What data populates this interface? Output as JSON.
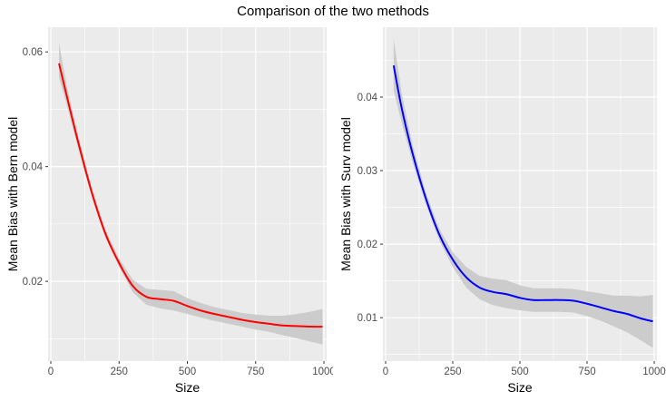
{
  "figure": {
    "title": "Comparison of the two methods"
  },
  "chart_data": [
    {
      "type": "line",
      "title": "",
      "xlabel": "Size",
      "ylabel": "Mean Bias with Bern model",
      "xlim": [
        -10,
        1010
      ],
      "ylim": [
        0.0061,
        0.0643
      ],
      "xticks": [
        0,
        250,
        500,
        750,
        1000
      ],
      "xtick_labels": [
        "0",
        "250",
        "500",
        "750",
        "1000"
      ],
      "yticks": [
        0.02,
        0.04,
        0.06
      ],
      "ytick_labels": [
        "0.02",
        "0.04",
        "0.06"
      ],
      "grid": true,
      "background": "#ebebeb",
      "line_color": "#ff0000",
      "ribbon_color": "#cccccc",
      "series": [
        {
          "x": [
            30,
            60,
            100,
            150,
            200,
            250,
            300,
            350,
            400,
            450,
            500,
            550,
            600,
            650,
            700,
            750,
            800,
            850,
            900,
            950,
            995
          ],
          "y": [
            0.058,
            0.052,
            0.0443,
            0.0355,
            0.0283,
            0.0232,
            0.0192,
            0.0173,
            0.0169,
            0.0166,
            0.0157,
            0.0149,
            0.0143,
            0.0138,
            0.0133,
            0.0129,
            0.0126,
            0.0123,
            0.0122,
            0.0121,
            0.0121
          ],
          "lower": [
            0.0555,
            0.0505,
            0.0432,
            0.0347,
            0.0276,
            0.0225,
            0.0181,
            0.0159,
            0.0153,
            0.0149,
            0.0143,
            0.0137,
            0.0131,
            0.0126,
            0.0121,
            0.0116,
            0.0112,
            0.0106,
            0.0101,
            0.0095,
            0.009
          ],
          "upper": [
            0.0615,
            0.0538,
            0.0455,
            0.0363,
            0.029,
            0.024,
            0.0203,
            0.0187,
            0.0185,
            0.0183,
            0.0171,
            0.0162,
            0.0155,
            0.015,
            0.0145,
            0.0142,
            0.014,
            0.014,
            0.0143,
            0.0147,
            0.0152
          ]
        }
      ]
    },
    {
      "type": "line",
      "title": "",
      "xlabel": "Size",
      "ylabel": "Mean Bias with Surv model",
      "xlim": [
        -10,
        1010
      ],
      "ylim": [
        0.0041,
        0.0495
      ],
      "xticks": [
        0,
        250,
        500,
        750,
        1000
      ],
      "xtick_labels": [
        "0",
        "250",
        "500",
        "750",
        "1000"
      ],
      "yticks": [
        0.01,
        0.02,
        0.03,
        0.04
      ],
      "ytick_labels": [
        "0.01",
        "0.02",
        "0.03",
        "0.04"
      ],
      "grid": true,
      "background": "#ebebeb",
      "line_color": "#0000ff",
      "ribbon_color": "#cccccc",
      "series": [
        {
          "x": [
            30,
            60,
            100,
            150,
            200,
            250,
            300,
            350,
            400,
            450,
            500,
            550,
            600,
            650,
            700,
            750,
            800,
            850,
            900,
            950,
            995
          ],
          "y": [
            0.0443,
            0.0385,
            0.0324,
            0.0262,
            0.0213,
            0.0179,
            0.0155,
            0.0141,
            0.0135,
            0.0132,
            0.0127,
            0.0124,
            0.0124,
            0.0124,
            0.0123,
            0.0119,
            0.0114,
            0.0109,
            0.0105,
            0.0099,
            0.0095
          ],
          "lower": [
            0.0409,
            0.0365,
            0.0312,
            0.0254,
            0.0205,
            0.0169,
            0.0141,
            0.0125,
            0.0117,
            0.0113,
            0.011,
            0.0108,
            0.0108,
            0.0108,
            0.0107,
            0.0102,
            0.0096,
            0.0088,
            0.008,
            0.0069,
            0.0059
          ],
          "upper": [
            0.0479,
            0.0405,
            0.0336,
            0.027,
            0.0221,
            0.0189,
            0.0169,
            0.0157,
            0.0153,
            0.0151,
            0.0144,
            0.014,
            0.014,
            0.014,
            0.0139,
            0.0136,
            0.0133,
            0.013,
            0.013,
            0.0129,
            0.0131
          ]
        }
      ]
    }
  ]
}
